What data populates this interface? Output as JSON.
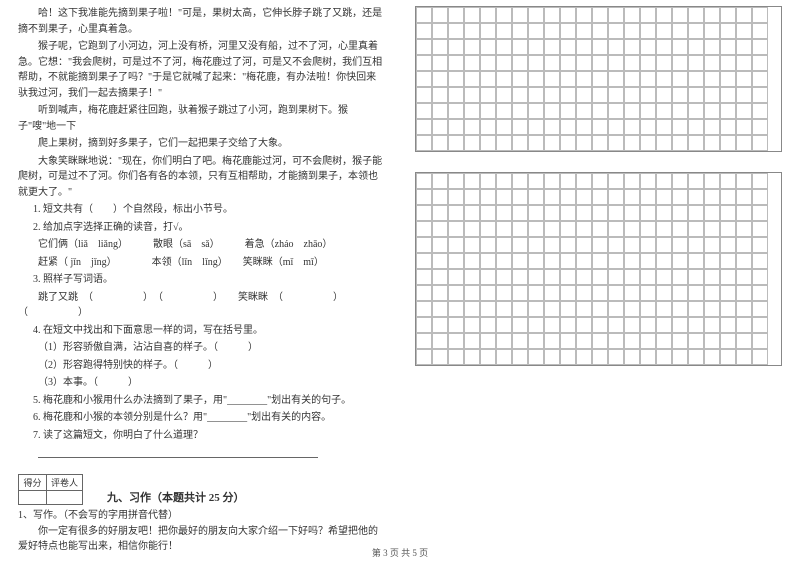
{
  "passage": {
    "p1": "哈！这下我准能先摘到果子啦！\"可是，果树太高，它伸长脖子跳了又跳，还是摘不到果子，心里真着急。",
    "p2": "猴子呢，它跑到了小河边，河上没有桥，河里又没有船，过不了河，心里真着急。它想：\"我会爬树，可是过不了河，梅花鹿过了河，可是又不会爬树，我们互相帮助，不就能摘到果子了吗？\"于是它就喊了起来：\"梅花鹿，有办法啦！你快回来驮我过河，我们一起去摘果子！\"",
    "p3": "听到喊声，梅花鹿赶紧往回跑，驮着猴子跳过了小河，跑到果树下。猴子\"嗖\"地一下",
    "p4": "爬上果树，摘到好多果子，它们一起把果子交给了大象。",
    "p5": "大象笑眯眯地说：\"现在，你们明白了吧。梅花鹿能过河，可不会爬树，猴子能爬树，可是过不了河。你们各有各的本领，只有互相帮助，才能摘到果子，本领也就更大了。\""
  },
  "questions": {
    "q1": "1. 短文共有（　　）个自然段，标出小节号。",
    "q2": "2. 给加点字选择正确的读音，打√。",
    "q2a": "它们俩（liǎ　liǎng）　　　散眼（sā　sǎ）　　　着急（zháo　zhāo）",
    "q2b": "赶紧（ jǐn　jǐng）　　　　本领（lǐn　lǐng）　　笑眯眯（mǐ　mī）",
    "q3": "3. 照样子写词语。",
    "q3a": "跳了又跳　（　　　　　）　（　　　　　）　　笑眯眯　（　　　　　）　（　　　　　）",
    "q4": "4. 在短文中找出和下面意思一样的词，写在括号里。",
    "q4a": "（1）形容骄傲自满，沾沾自喜的样子。（　　　）",
    "q4b": "（2）形容跑得特别快的样子。（　　　）",
    "q4c": "（3）本事。（　　　）",
    "q5": "5. 梅花鹿和小猴用什么办法摘到了果子，用\"________\"划出有关的句子。",
    "q6": "6. 梅花鹿和小猴的本领分别是什么？用\"________\"划出有关的内容。",
    "q7": "7. 读了这篇短文，你明白了什么道理？"
  },
  "scorebox": {
    "c1": "得分",
    "c2": "评卷人"
  },
  "section9": {
    "title": "九、习作（本题共计 25 分）",
    "lead": "1、写作。（不会写的字用拼音代替）",
    "body": "你一定有很多的好朋友吧！把你最好的朋友向大家介绍一下好吗？希望把他的爱好特点也能写出来，相信你能行！"
  },
  "grid": {
    "cols": 22,
    "rows1": 9,
    "rows2": 12,
    "cell_size": 16,
    "border_color": "#bbbbbb"
  },
  "footer": "第 3 页 共 5 页"
}
